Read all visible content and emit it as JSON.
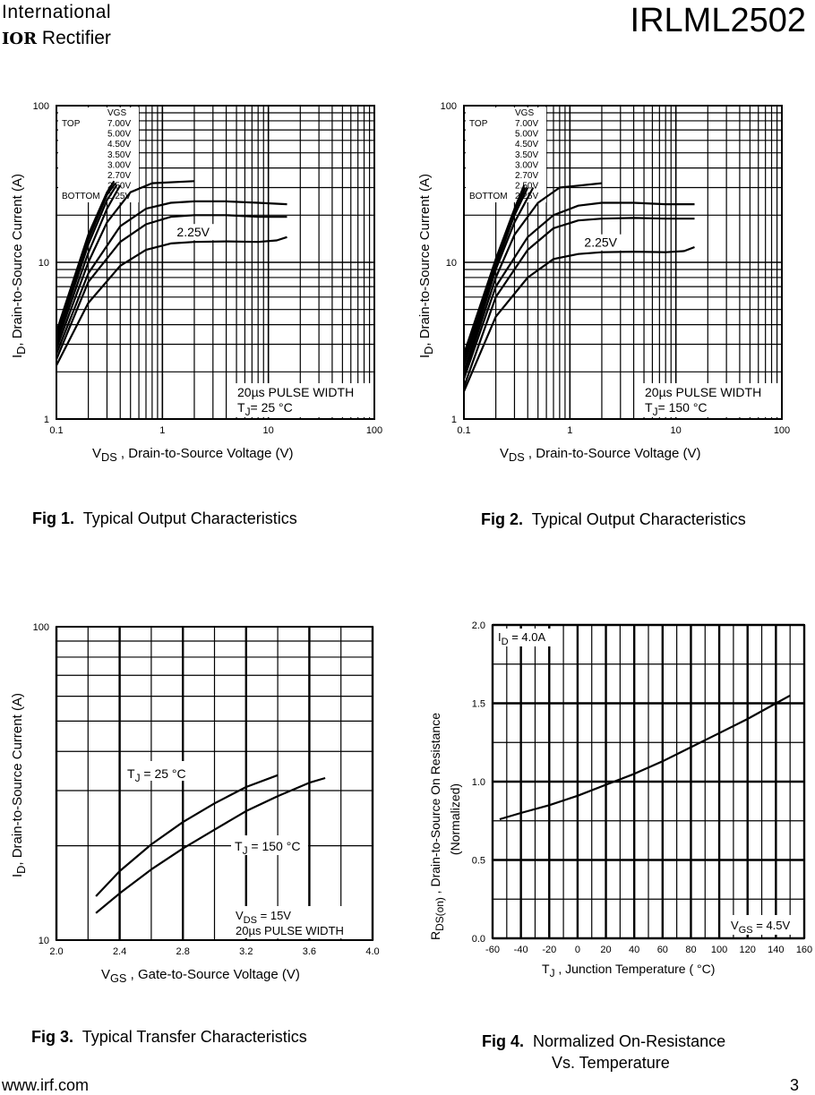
{
  "header": {
    "company_line1": "International",
    "company_logo": "IOR",
    "company_line2": "Rectifier",
    "part_number": "IRLML2502"
  },
  "footer": {
    "url": "www.irf.com",
    "page": "3"
  },
  "captions": {
    "fig1": {
      "num": "Fig 1.",
      "text": "Typical Output Characteristics"
    },
    "fig2": {
      "num": "Fig 2.",
      "text": "Typical Output Characteristics"
    },
    "fig3": {
      "num": "Fig 3.",
      "text": "Typical Transfer Characteristics"
    },
    "fig4": {
      "num": "Fig 4.",
      "text": "Normalized On-Resistance",
      "text2": "Vs. Temperature"
    }
  },
  "chart_data": [
    {
      "id": "fig1",
      "type": "line",
      "xscale": "log",
      "yscale": "log",
      "xlim": [
        0.1,
        100
      ],
      "ylim": [
        1,
        100
      ],
      "xticks": [
        "0.1",
        "1",
        "10",
        "100"
      ],
      "yticks": [
        "1",
        "10",
        "100"
      ],
      "xlabel_main": "V",
      "xlabel_sub": "DS",
      "xlabel_rest": " , Drain-to-Source Voltage (V)",
      "ylabel_main": "I",
      "ylabel_sub": "D",
      "ylabel_rest": ",  Drain-to-Source Current (A)",
      "legend_title": "VGS",
      "legend_top": "TOP",
      "legend_bottom": "BOTTOM",
      "legend": [
        "7.00V",
        "5.00V",
        "4.50V",
        "3.50V",
        "3.00V",
        "2.70V",
        "2.50V",
        "2.25V"
      ],
      "curve_label": "2.25V",
      "note1": "20µs PULSE WIDTH",
      "note2_main": "T",
      "note2_sub": "J",
      "note2_rest": "= 25 °C",
      "series": [
        {
          "name": "7.00V",
          "x": [
            0.1,
            0.2,
            0.3,
            0.35
          ],
          "y": [
            3.6,
            15,
            28,
            33
          ]
        },
        {
          "name": "5.00V",
          "x": [
            0.1,
            0.2,
            0.3,
            0.36
          ],
          "y": [
            3.4,
            14,
            27,
            32
          ]
        },
        {
          "name": "4.50V",
          "x": [
            0.1,
            0.2,
            0.3,
            0.37
          ],
          "y": [
            3.2,
            13,
            25,
            31
          ]
        },
        {
          "name": "3.50V",
          "x": [
            0.1,
            0.2,
            0.3,
            0.4
          ],
          "y": [
            3.0,
            11.5,
            22,
            31
          ]
        },
        {
          "name": "3.00V",
          "x": [
            0.1,
            0.2,
            0.3,
            0.5,
            0.8,
            2.0
          ],
          "y": [
            2.8,
            10,
            18,
            28,
            32,
            33
          ]
        },
        {
          "name": "2.70V",
          "x": [
            0.1,
            0.2,
            0.4,
            0.7,
            1.2,
            2,
            4,
            8,
            15
          ],
          "y": [
            2.6,
            8.5,
            17,
            22,
            24,
            24.5,
            24.5,
            24,
            23.5
          ]
        },
        {
          "name": "2.50V",
          "x": [
            0.1,
            0.2,
            0.4,
            0.7,
            1.2,
            2,
            4,
            8,
            15
          ],
          "y": [
            2.4,
            7.5,
            13.5,
            17.5,
            19.5,
            20,
            20,
            19.5,
            19.5
          ]
        },
        {
          "name": "2.25V",
          "x": [
            0.1,
            0.2,
            0.4,
            0.7,
            1.2,
            2,
            4,
            8,
            12,
            15
          ],
          "y": [
            2.2,
            5.5,
            9.5,
            12,
            13.2,
            13.5,
            13.6,
            13.5,
            13.8,
            14.5
          ]
        }
      ]
    },
    {
      "id": "fig2",
      "type": "line",
      "xscale": "log",
      "yscale": "log",
      "xlim": [
        0.1,
        100
      ],
      "ylim": [
        1,
        100
      ],
      "xticks": [
        "0.1",
        "1",
        "10",
        "100"
      ],
      "yticks": [
        "1",
        "10",
        "100"
      ],
      "xlabel_main": "V",
      "xlabel_sub": "DS",
      "xlabel_rest": " , Drain-to-Source Voltage (V)",
      "ylabel_main": "I",
      "ylabel_sub": "D",
      "ylabel_rest": ",  Drain-to-Source Current (A)",
      "legend_title": "VGS",
      "legend_top": "TOP",
      "legend_bottom": "BOTTOM",
      "legend": [
        "7.00V",
        "5.00V",
        "4.50V",
        "3.50V",
        "3.00V",
        "2.70V",
        "2.50V",
        "2.25V"
      ],
      "curve_label": "2.25V",
      "note1": "20µs PULSE WIDTH",
      "note2_main": "T",
      "note2_sub": "J",
      "note2_rest": "= 150 °C",
      "series": [
        {
          "name": "7.00V",
          "x": [
            0.1,
            0.2,
            0.3,
            0.37
          ],
          "y": [
            2.6,
            10.5,
            22,
            31
          ]
        },
        {
          "name": "5.00V",
          "x": [
            0.1,
            0.2,
            0.3,
            0.38
          ],
          "y": [
            2.4,
            10,
            21,
            30
          ]
        },
        {
          "name": "4.50V",
          "x": [
            0.1,
            0.2,
            0.3,
            0.4
          ],
          "y": [
            2.2,
            9.5,
            20,
            30
          ]
        },
        {
          "name": "3.50V",
          "x": [
            0.1,
            0.2,
            0.3,
            0.45
          ],
          "y": [
            2.0,
            9,
            18,
            30
          ]
        },
        {
          "name": "3.00V",
          "x": [
            0.1,
            0.2,
            0.3,
            0.5,
            0.8,
            2.0
          ],
          "y": [
            1.9,
            8,
            15,
            24,
            30,
            32
          ]
        },
        {
          "name": "2.70V",
          "x": [
            0.1,
            0.2,
            0.4,
            0.7,
            1.2,
            2,
            4,
            8,
            15
          ],
          "y": [
            1.8,
            7,
            14.5,
            20,
            23,
            24,
            24,
            23.5,
            23.5
          ]
        },
        {
          "name": "2.50V",
          "x": [
            0.1,
            0.2,
            0.4,
            0.7,
            1.2,
            2,
            4,
            8,
            15
          ],
          "y": [
            1.6,
            6,
            12,
            16.5,
            18.5,
            19,
            19.2,
            19,
            19
          ]
        },
        {
          "name": "2.25V",
          "x": [
            0.1,
            0.2,
            0.4,
            0.7,
            1.2,
            2,
            4,
            8,
            12,
            15
          ],
          "y": [
            1.5,
            4.5,
            8,
            10.5,
            11.3,
            11.6,
            11.7,
            11.6,
            11.8,
            12.5
          ]
        }
      ]
    },
    {
      "id": "fig3",
      "type": "line",
      "xscale": "linear",
      "yscale": "log",
      "xlim": [
        2.0,
        4.0
      ],
      "ylim": [
        10,
        100
      ],
      "xticks": [
        "2.0",
        "2.4",
        "2.8",
        "3.2",
        "3.6",
        "4.0"
      ],
      "yticks": [
        "10",
        "100"
      ],
      "xlabel_main": "V",
      "xlabel_sub": "GS",
      "xlabel_rest": " , Gate-to-Source Voltage (V)",
      "ylabel_main": "I",
      "ylabel_sub": "D",
      "ylabel_rest": ",  Drain-to-Source Current (A)",
      "label_25_main": "T",
      "label_25_sub": "J",
      "label_25_rest": " = 25 °C",
      "label_150_main": "T",
      "label_150_sub": "J",
      "label_150_rest": " = 150 °C",
      "note1_main": "V",
      "note1_sub": "DS",
      "note1_rest": " = 15V",
      "note2": "20µs PULSE WIDTH",
      "series": [
        {
          "name": "TJ = 25°C",
          "x": [
            2.25,
            2.4,
            2.6,
            2.8,
            3.0,
            3.2,
            3.4
          ],
          "y": [
            13.8,
            16.6,
            20.2,
            23.8,
            27.3,
            30.8,
            33.6
          ]
        },
        {
          "name": "TJ = 150°C",
          "x": [
            2.25,
            2.4,
            2.6,
            2.8,
            3.0,
            3.2,
            3.4,
            3.6,
            3.7
          ],
          "y": [
            12.2,
            14.1,
            16.8,
            19.6,
            22.5,
            25.8,
            28.8,
            31.8,
            32.9
          ]
        }
      ]
    },
    {
      "id": "fig4",
      "type": "line",
      "xscale": "linear",
      "yscale": "linear",
      "xlim": [
        -60,
        160
      ],
      "ylim": [
        0.0,
        2.0
      ],
      "xticks": [
        "-60",
        "-40",
        "-20",
        "0",
        "20",
        "40",
        "60",
        "80",
        "100",
        "120",
        "140",
        "160"
      ],
      "yticks": [
        "0.0",
        "0.5",
        "1.0",
        "1.5",
        "2.0"
      ],
      "xlabel_main": "T",
      "xlabel_sub": "J",
      "xlabel_rest": " , Junction Temperature  ( °C)",
      "ylabel_main": "R",
      "ylabel_sub": "DS(on)",
      "ylabel_rest": "  , Drain-to-Source On Resistance",
      "ylabel_line2": "(Normalized)",
      "note_id_main": "I",
      "note_id_sub": "D",
      "note_id_rest": " = 4.0A",
      "note_vgs_main": "V",
      "note_vgs_sub": "GS",
      "note_vgs_rest": " = 4.5V",
      "series": [
        {
          "name": "RDS(on)",
          "x": [
            -55,
            -40,
            -20,
            0,
            20,
            40,
            60,
            80,
            100,
            120,
            140,
            150
          ],
          "y": [
            0.76,
            0.8,
            0.85,
            0.91,
            0.98,
            1.05,
            1.13,
            1.22,
            1.31,
            1.4,
            1.5,
            1.55
          ]
        }
      ]
    }
  ]
}
